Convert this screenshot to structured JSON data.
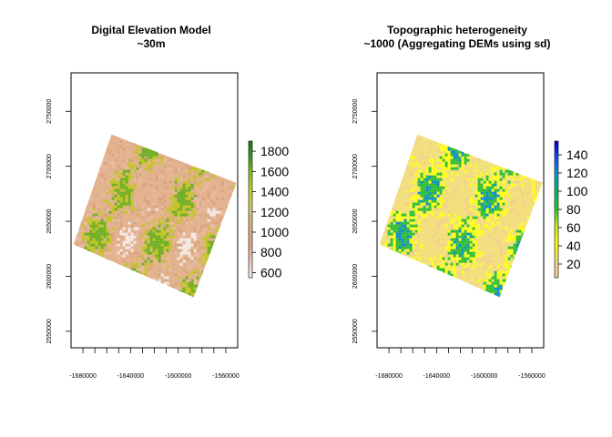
{
  "chart_data": [
    {
      "type": "heatmap",
      "title": "Digital Elevation Model",
      "subtitle": "~30m",
      "xlabel": "",
      "ylabel": "",
      "x_ticks": [
        -1680000,
        -1640000,
        -1600000,
        -1560000
      ],
      "y_ticks": [
        2550000,
        2600000,
        2650000,
        2700000,
        2750000
      ],
      "xlim": [
        -1690000,
        -1550000
      ],
      "ylim": [
        2535000,
        2785000
      ],
      "legend": {
        "placement": "right",
        "ticks": [
          600,
          800,
          1000,
          1200,
          1400,
          1600,
          1800
        ],
        "range": [
          550,
          1900
        ],
        "colors": [
          "#f2f2f2",
          "#eac8b8",
          "#e1a887",
          "#d9b27e",
          "#d1cd6a",
          "#c7d52f",
          "#93c61f",
          "#3d9f22",
          "#1d7a1a"
        ]
      },
      "raster": {
        "footprint": [
          [
            -1656000,
            2729000
          ],
          [
            -1551000,
            2685000
          ],
          [
            -1587000,
            2581000
          ],
          [
            -1688000,
            2629000
          ]
        ],
        "base_color": "#e3b28f",
        "valley_color": "#f4eae5",
        "high_color": "#c4c62a",
        "peak_color": "#6fb123"
      }
    },
    {
      "type": "heatmap",
      "title": "Topographic heterogeneity",
      "subtitle": "~1000 (Aggregating DEMs using sd)",
      "xlabel": "",
      "ylabel": "",
      "x_ticks": [
        -1680000,
        -1640000,
        -1600000,
        -1560000
      ],
      "y_ticks": [
        2550000,
        2600000,
        2650000,
        2700000,
        2750000
      ],
      "xlim": [
        -1690000,
        -1550000
      ],
      "ylim": [
        2535000,
        2785000
      ],
      "legend": {
        "placement": "right",
        "ticks": [
          20,
          40,
          60,
          80,
          100,
          120,
          140
        ],
        "range": [
          5,
          155
        ],
        "colors": [
          "#f5c89a",
          "#f2dc78",
          "#ffff00",
          "#c9ef1a",
          "#2fcb2f",
          "#11b46a",
          "#08a0c8",
          "#1a4ef0",
          "#0000d0"
        ]
      },
      "raster": {
        "footprint": [
          [
            -1656000,
            2729000
          ],
          [
            -1551000,
            2685000
          ],
          [
            -1587000,
            2581000
          ],
          [
            -1688000,
            2629000
          ]
        ],
        "base_color": "#f3df80",
        "mid_color": "#ffff1c",
        "high_color": "#2fbf3a",
        "peak_color": "#0a8fd0"
      }
    }
  ]
}
